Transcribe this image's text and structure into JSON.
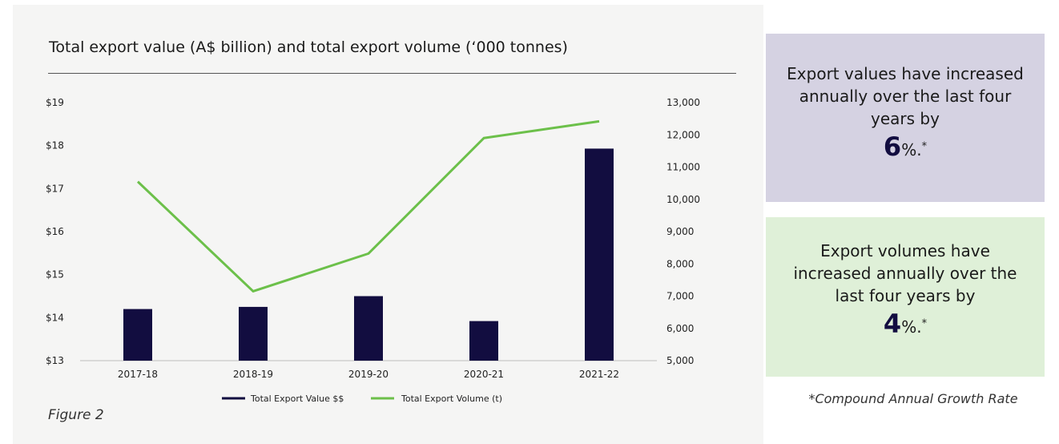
{
  "chart_data": {
    "type": "bar",
    "title": "Total export value (A$ billion) and total export volume (‘000 tonnes)",
    "categories": [
      "2017-18",
      "2018-19",
      "2019-20",
      "2020-21",
      "2021-22"
    ],
    "series": [
      {
        "name": "Total Export Value $$",
        "type": "bar",
        "axis": "left",
        "color": "#120d40",
        "values": [
          14.2,
          14.25,
          14.5,
          13.92,
          17.93
        ]
      },
      {
        "name": "Total Export Volume (t)",
        "type": "line",
        "axis": "right",
        "color": "#6cc04a",
        "values": [
          10550,
          7150,
          8320,
          11900,
          12420
        ]
      }
    ],
    "y_left": {
      "ticks": [
        "$13",
        "$14",
        "$15",
        "$16",
        "$17",
        "$18",
        "$19"
      ],
      "ylim": [
        13,
        19
      ]
    },
    "y_right": {
      "ticks": [
        "5,000",
        "6,000",
        "7,000",
        "8,000",
        "9,000",
        "10,000",
        "11,000",
        "12,000",
        "13,000"
      ],
      "ylim": [
        5000,
        13000
      ]
    },
    "grid": false,
    "legend": "bottom-center"
  },
  "figure_caption": "Figure 2",
  "callouts": [
    {
      "text": "Export values have increased annually over the last four years by",
      "value": "6",
      "suffix": "%.",
      "marker": "*",
      "background": "#d5d2e2"
    },
    {
      "text": "Export volumes have increased annually over the last four years by",
      "value": "4",
      "suffix": "%.",
      "marker": "*",
      "background": "#dff0d8"
    }
  ],
  "footnote": "*Compound Annual Growth Rate"
}
